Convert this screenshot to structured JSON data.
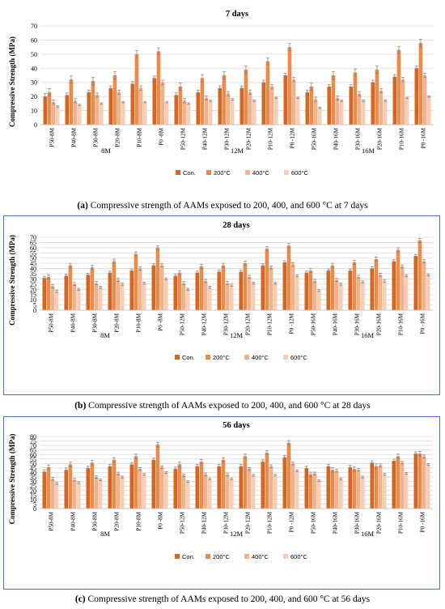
{
  "colors": {
    "series": [
      "#d8651f",
      "#ef8a46",
      "#f3b18a",
      "#f7cdb6"
    ],
    "grid": "#d9d9d9",
    "error": "#7f7f7f",
    "frame_blue": "#4472c4"
  },
  "captions": [
    {
      "label": "(a)",
      "text": " Compressive strength of AAMs exposed to 200, 400, and 600 °C at 7 days"
    },
    {
      "label": "(b)",
      "text": " Compressive strength of AAMs exposed to 200, 400, and 600 °C at 28 days"
    },
    {
      "label": "(c)",
      "text": " Compressive strength of AAMs exposed to 200, 400, and 600 °C at 56 days"
    }
  ],
  "chart_data": [
    {
      "type": "bar",
      "title": "7 days",
      "xlabel": "",
      "ylabel": "Compressive Strength  (MPa)",
      "ylim": [
        0,
        70
      ],
      "yticks": [
        0,
        10,
        20,
        30,
        40,
        50,
        60,
        70
      ],
      "grid": true,
      "legend_position": "bottom",
      "categories": [
        "P50-8M",
        "P40-8M",
        "P30-8M",
        "P20-8M",
        "P10-8M",
        "P0 -8M",
        "P50-12M",
        "P40-12M",
        "P30-12M",
        "P20-12M",
        "P10-12M",
        "P0 -12M",
        "P50-16M",
        "P40-16M",
        "P30-16M",
        "P20-16M",
        "P10-16M",
        "P0 -16M"
      ],
      "groups": [
        "8M",
        "12M",
        "16M"
      ],
      "series": [
        {
          "name": "Con.",
          "values": [
            20,
            21,
            23,
            26,
            29,
            33,
            21,
            23,
            26,
            26,
            30,
            35,
            23,
            27,
            27,
            30,
            34,
            40
          ]
        },
        {
          "name": "200°C",
          "values": [
            23,
            32,
            31,
            35,
            50,
            52,
            27,
            33,
            35,
            39,
            45,
            55,
            27,
            35,
            37,
            39,
            53,
            58
          ]
        },
        {
          "name": "400°C",
          "values": [
            16,
            17,
            21,
            23,
            26,
            30,
            17,
            19,
            22,
            23,
            27,
            32,
            18,
            19,
            22,
            24,
            32,
            35
          ]
        },
        {
          "name": "600°C",
          "values": [
            13,
            14,
            15,
            16,
            16,
            16,
            15,
            17,
            18,
            17,
            19,
            19,
            12,
            17,
            17,
            17,
            19,
            20
          ]
        }
      ],
      "errors": [
        [
          2,
          1.5,
          1.5,
          1.5,
          1.5,
          1.5,
          1.5,
          1.5,
          1.5,
          1.5,
          1.5,
          1.5,
          1.5,
          1.5,
          1.5,
          1.5,
          1.5,
          1.5
        ],
        [
          2.5,
          2.5,
          2.5,
          2.5,
          2.5,
          2.5,
          2.5,
          2.5,
          2.5,
          2.5,
          2.5,
          2.5,
          2.5,
          2.5,
          2.5,
          2.5,
          2.5,
          2.5
        ],
        [
          1.5,
          1.5,
          1.5,
          1.5,
          1.5,
          1.5,
          1.5,
          1.5,
          1.5,
          1.5,
          1.5,
          1.5,
          1.5,
          1.5,
          1.5,
          1.5,
          1.5,
          1.5
        ],
        [
          0.5,
          0.5,
          0.5,
          0.5,
          0.5,
          0.5,
          0.5,
          0.5,
          0.5,
          0.5,
          0.5,
          0.5,
          0.5,
          0.5,
          0.5,
          0.5,
          0.5,
          0.5
        ]
      ]
    },
    {
      "type": "bar",
      "title": "28 days",
      "xlabel": "",
      "ylabel": "Compressive Strength (MPa)",
      "ylim": [
        0,
        70
      ],
      "yticks": [
        0,
        5,
        10,
        15,
        20,
        25,
        30,
        35,
        40,
        45,
        50,
        55,
        60,
        65,
        70
      ],
      "grid": true,
      "legend_position": "bottom",
      "categories": [
        "P50-8M",
        "P40-8M",
        "P30-8M",
        "P20-8M",
        "P10-8M",
        "P0 -8M",
        "P50-12M",
        "P40-12M",
        "P30-12M",
        "P20-12M",
        "P10-12M",
        "P0 -12M",
        "P50-16M",
        "P40-16M",
        "P30-16M",
        "P20-16M",
        "P10-16M",
        "P0 -16M"
      ],
      "groups": [
        "8M",
        "12M",
        "16M"
      ],
      "series": [
        {
          "name": "Con.",
          "values": [
            31,
            33,
            34,
            36,
            38,
            43,
            33,
            36,
            37,
            37,
            43,
            46,
            36,
            38,
            38,
            40,
            47,
            52
          ]
        },
        {
          "name": "200°C",
          "values": [
            32,
            43,
            41,
            47,
            54,
            60,
            36,
            42,
            43,
            45,
            59,
            62,
            38,
            43,
            46,
            49,
            58,
            67
          ]
        },
        {
          "name": "400°C",
          "values": [
            23,
            25,
            26,
            29,
            40,
            43,
            26,
            28,
            26,
            32,
            41,
            44,
            28,
            29,
            32,
            34,
            42,
            47
          ]
        },
        {
          "name": "600°C",
          "values": [
            18,
            20,
            22,
            25,
            26,
            30,
            20,
            22,
            24,
            26,
            26,
            33,
            19,
            25,
            27,
            28,
            33,
            34
          ]
        }
      ],
      "errors": [
        [
          1.5,
          1.5,
          1.5,
          1.5,
          1.5,
          1.5,
          1.5,
          1.5,
          1.5,
          1.5,
          1.5,
          1.5,
          1.5,
          1.5,
          1.5,
          1.5,
          1.5,
          1.5
        ],
        [
          2,
          2,
          2,
          2,
          2,
          2,
          2,
          2,
          2,
          2,
          2,
          2,
          2,
          2,
          2,
          2,
          2,
          2
        ],
        [
          1.5,
          1.5,
          1.5,
          1.5,
          1.5,
          1.5,
          1.5,
          1.5,
          1.5,
          1.5,
          1.5,
          1.5,
          1.5,
          1.5,
          1.5,
          1.5,
          1.5,
          1.5
        ],
        [
          1,
          1,
          1,
          1,
          1,
          1,
          1,
          1,
          1,
          1,
          1,
          1,
          1,
          1,
          1,
          1,
          1,
          1
        ]
      ]
    },
    {
      "type": "bar",
      "title": "56 days",
      "xlabel": "",
      "ylabel": "Compressive Strength (MPa)",
      "ylim": [
        0,
        80
      ],
      "yticks": [
        0,
        5,
        10,
        15,
        20,
        25,
        30,
        35,
        40,
        45,
        50,
        55,
        60,
        65,
        70,
        75,
        80
      ],
      "grid": true,
      "legend_position": "bottom",
      "categories": [
        "P50-8M",
        "P40-8M",
        "P30-8M",
        "P20-8M",
        "P10-8M",
        "P0 -8M",
        "P50-12M",
        "P40-12M",
        "P30-12M",
        "P20-12M",
        "P10-12M",
        "P0 -12M",
        "P50-16M",
        "P40-16M",
        "P30-16M",
        "P20-16M",
        "P10-16M",
        "P0 -16M"
      ],
      "groups": [
        "8M",
        "12M",
        "16M"
      ],
      "series": [
        {
          "name": "Con.",
          "values": [
            41,
            43,
            45,
            47,
            49,
            54,
            44,
            47,
            47,
            47,
            52,
            57,
            45,
            47,
            46,
            51,
            53,
            61
          ]
        },
        {
          "name": "200°C",
          "values": [
            46,
            49,
            51,
            54,
            58,
            71,
            49,
            52,
            54,
            58,
            62,
            73,
            38,
            43,
            44,
            47,
            58,
            61
          ]
        },
        {
          "name": "400°C",
          "values": [
            33,
            32,
            35,
            39,
            44,
            46,
            37,
            38,
            38,
            44,
            47,
            50,
            39,
            42,
            43,
            48,
            51,
            58
          ]
        },
        {
          "name": "600°C",
          "values": [
            28,
            29,
            32,
            35,
            38,
            40,
            30,
            33,
            33,
            37,
            37,
            42,
            31,
            33,
            35,
            38,
            39,
            49
          ]
        }
      ],
      "errors": [
        [
          2,
          2,
          2,
          2,
          2,
          2,
          2,
          2,
          2,
          2,
          2,
          2,
          2,
          2,
          2,
          2,
          2,
          2
        ],
        [
          2.5,
          2.5,
          2.5,
          2.5,
          2.5,
          2.5,
          2.5,
          2.5,
          2.5,
          2.5,
          2.5,
          2.5,
          2.5,
          2.5,
          2.5,
          2.5,
          2.5,
          2.5
        ],
        [
          1.5,
          1.5,
          1.5,
          1.5,
          1.5,
          1.5,
          1.5,
          1.5,
          1.5,
          1.5,
          1.5,
          1.5,
          1.5,
          1.5,
          1.5,
          1.5,
          1.5,
          1.5
        ],
        [
          1,
          1,
          1,
          1,
          1,
          1,
          1,
          1,
          1,
          1,
          1,
          1,
          1,
          1,
          1,
          1,
          1,
          1
        ]
      ]
    }
  ]
}
